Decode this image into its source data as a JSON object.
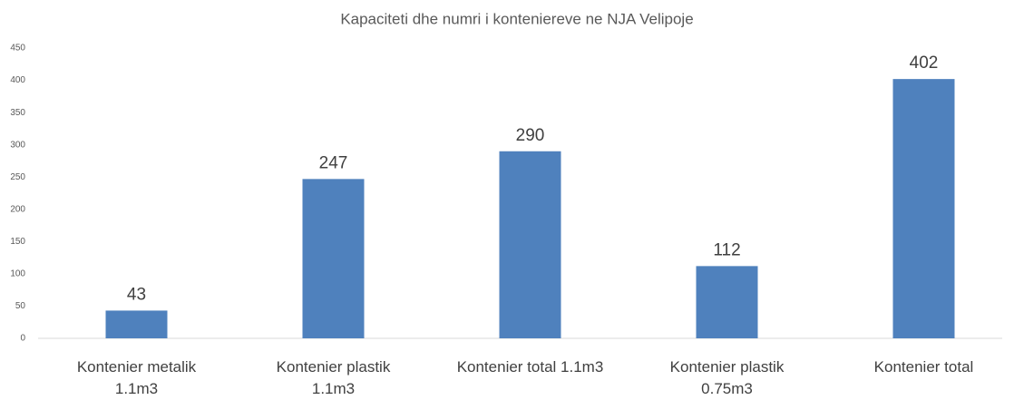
{
  "chart_data": {
    "type": "bar",
    "title": "Kapaciteti dhe numri i kontenierevе ne NJA Velipoje",
    "categories": [
      "Kontenier metalik\n1.1m3",
      "Kontenier plastik\n1.1m3",
      "Kontenier total 1.1m3",
      "Kontenier plastik\n0.75m3",
      "Kontenier total"
    ],
    "values": [
      43,
      247,
      290,
      112,
      402
    ],
    "color": "#4f81bd",
    "ylim": [
      0,
      450
    ],
    "yticks": [
      0,
      50,
      100,
      150,
      200,
      250,
      300,
      350,
      400,
      450
    ],
    "grid": false
  }
}
